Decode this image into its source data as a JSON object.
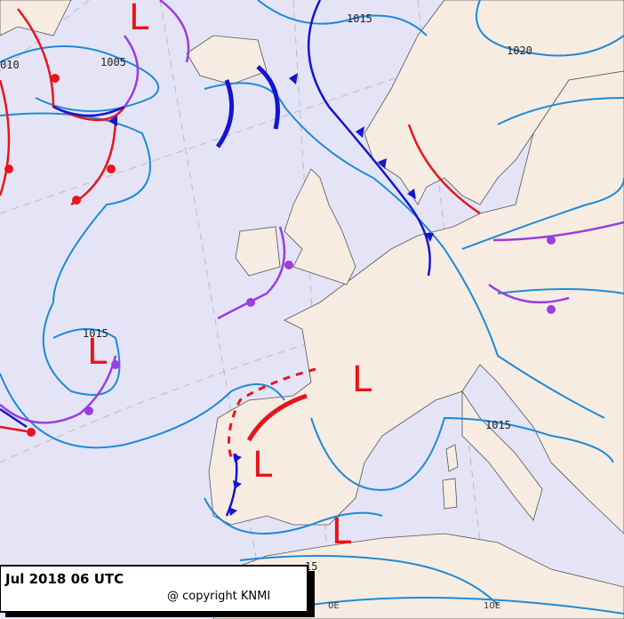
{
  "footer": {
    "date": "Jul 2018 06 UTC",
    "copyright": "@ copyright KNMI"
  },
  "isobar_labels": [
    "1015",
    "1005",
    "010",
    "1020",
    "1015",
    "1015",
    "15"
  ],
  "pressure_centers": [
    "L",
    "L",
    "L",
    "L",
    "L"
  ],
  "meridian_labels": [
    "0E",
    "10E"
  ]
}
